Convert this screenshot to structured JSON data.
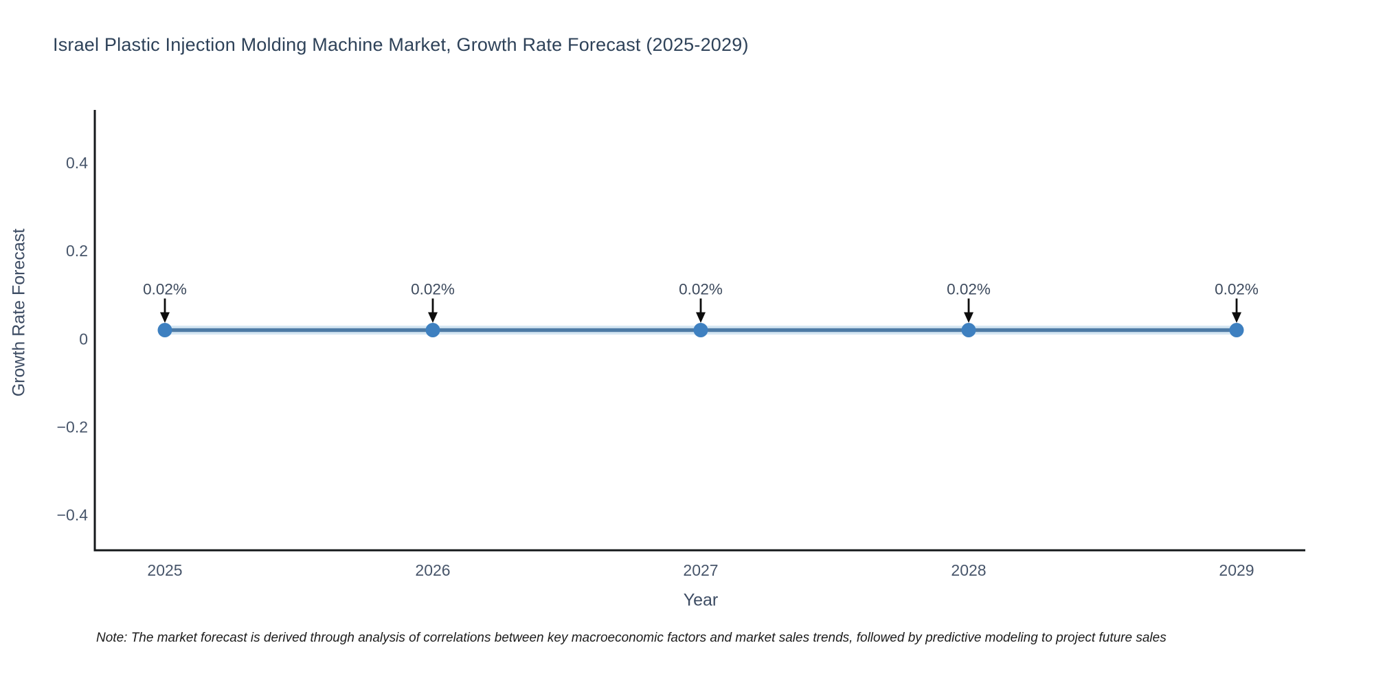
{
  "title": "Israel Plastic Injection Molding Machine Market, Growth Rate Forecast (2025-2029)",
  "note": "Note: The market forecast is derived through analysis of correlations between key macroeconomic factors and market sales trends, followed by predictive modeling to project future sales",
  "chart_data": {
    "type": "line",
    "title": "Israel Plastic Injection Molding Machine Market, Growth Rate Forecast (2025-2029)",
    "xlabel": "Year",
    "ylabel": "Growth Rate Forecast",
    "x": [
      2025,
      2026,
      2027,
      2028,
      2029
    ],
    "values": [
      0.02,
      0.02,
      0.02,
      0.02,
      0.02
    ],
    "point_labels": [
      "0.02%",
      "0.02%",
      "0.02%",
      "0.02%",
      "0.02%"
    ],
    "xtick_labels": [
      "2025",
      "2026",
      "2027",
      "2028",
      "2029"
    ],
    "yticks": [
      0.4,
      0.2,
      0,
      -0.2,
      -0.4
    ],
    "ytick_labels": [
      "0.4",
      "0.2",
      "0",
      "−0.2",
      "−0.4"
    ],
    "ylim": [
      -0.48,
      0.52
    ],
    "grid": false,
    "legend": "none",
    "annotation_style": "down-arrow-with-label",
    "colors": {
      "line": "#4e7ba6",
      "line_halo": "#cfe3f1",
      "marker": "#3e80c0",
      "arrow": "#0d0d0d",
      "axis": "#15181b",
      "title_text": "#2e4259",
      "axis_title_text": "#3d4c63",
      "tick_text": "#47556a",
      "point_label_text": "#3d4a5d",
      "background": "#ffffff"
    }
  }
}
